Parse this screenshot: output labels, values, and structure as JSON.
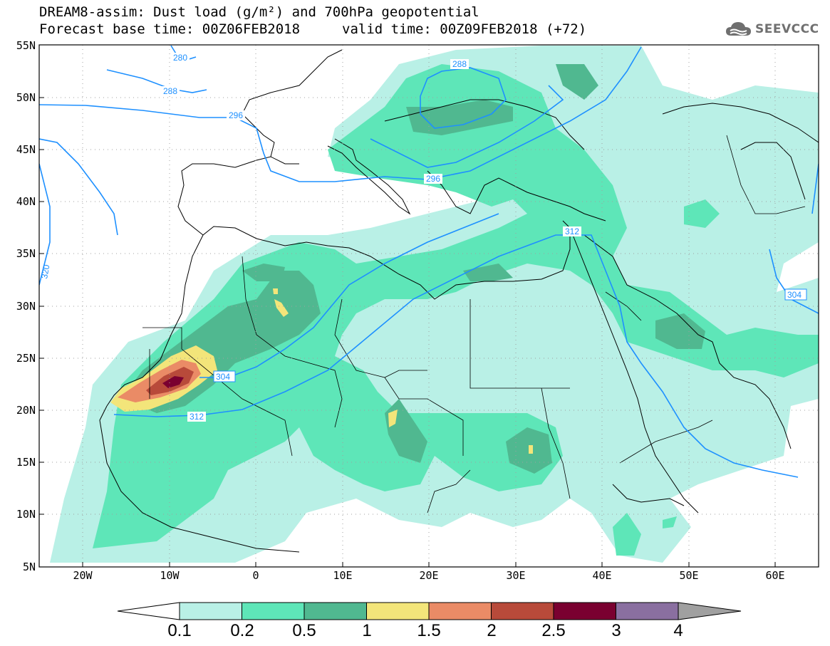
{
  "title": {
    "line1": "DREAM8-assim: Dust load (g/m²) and 700hPa geopotential",
    "line2": "Forecast base time: 00Z06FEB2018",
    "valid": "valid time: 00Z09FEB2018 (+72)"
  },
  "logo": {
    "text": "SEEVCCC",
    "icon": "cloud-icon"
  },
  "map": {
    "x_ticks": [
      "20W",
      "10W",
      "0",
      "10E",
      "20E",
      "30E",
      "40E",
      "50E",
      "60E"
    ],
    "y_ticks": [
      "55N",
      "50N",
      "45N",
      "40N",
      "35N",
      "30N",
      "25N",
      "20N",
      "15N",
      "10N",
      "5N"
    ],
    "contour_labels": [
      "280",
      "288",
      "296",
      "288",
      "296",
      "304",
      "312",
      "312",
      "320",
      "304"
    ]
  },
  "colorbar": {
    "labels": [
      "0.1",
      "0.2",
      "0.5",
      "1",
      "1.5",
      "2",
      "2.5",
      "3",
      "4"
    ],
    "colors": [
      "#b9f0e6",
      "#5ee6b8",
      "#50b890",
      "#f3e57a",
      "#ea8b66",
      "#b84a3a",
      "#7a0030",
      "#8a6fa0",
      "#a0a0a0"
    ]
  },
  "colors": {
    "contour": "#1e90ff",
    "coast": "#000000",
    "land_bg": "#ffffff"
  }
}
